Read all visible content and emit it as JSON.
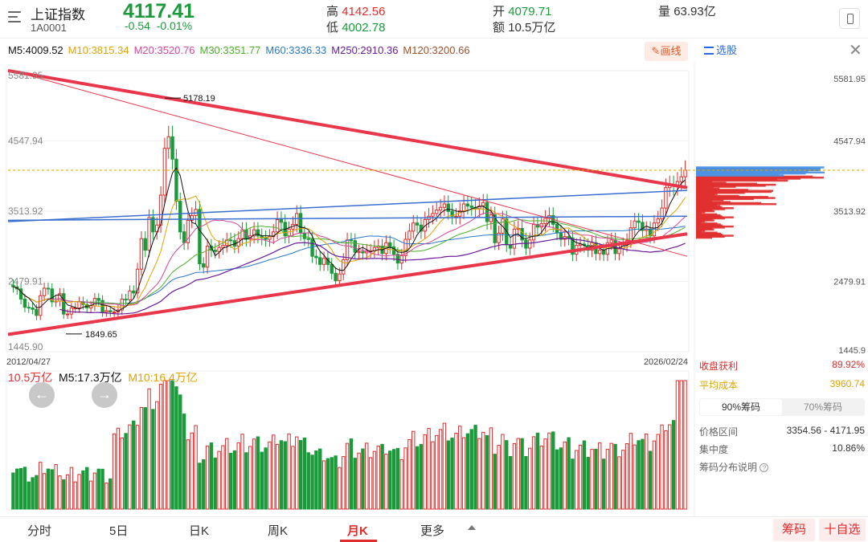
{
  "header": {
    "name": "上证指数",
    "code": "1A0001",
    "price": "4117.41",
    "change": "-0.54",
    "change_pct": "-0.01%",
    "high_label": "高",
    "high": "4142.56",
    "low_label": "低",
    "low": "4002.78",
    "open_label": "开",
    "open": "4079.71",
    "amount_label": "额",
    "amount": "10.5万亿",
    "volume_label": "量",
    "volume": "63.93亿"
  },
  "ma_bar": [
    {
      "label": "M5:4009.52",
      "color": "#111111"
    },
    {
      "label": "M10:3815.34",
      "color": "#e0a300"
    },
    {
      "label": "M20:3520.76",
      "color": "#d6469b"
    },
    {
      "label": "M30:3351.77",
      "color": "#4caf2a"
    },
    {
      "label": "M60:3336.33",
      "color": "#2a78c8"
    },
    {
      "label": "M250:2910.36",
      "color": "#6a1b9a"
    },
    {
      "label": "M120:3200.66",
      "color": "#a0522d"
    }
  ],
  "toolbar": {
    "draw_label": "画线",
    "stock_pick_label": "选股"
  },
  "price_axis": {
    "left_labels": [
      "5581.95",
      "4547.94",
      "3513.92",
      "2479.91",
      "1445.90"
    ],
    "right_labels": [
      "5581.95",
      "4547.94",
      "3513.92",
      "2479.91",
      "1445.9"
    ]
  },
  "dates": {
    "start": "2012/04/27",
    "end": "2026/02/24"
  },
  "annotations": {
    "high": "5178.19",
    "low": "1849.65"
  },
  "volume_bar": {
    "total": "10.5万亿",
    "m5": "M5:17.3万亿",
    "m10": "M10:16.4万亿"
  },
  "chips": {
    "profit_label": "收盘获利",
    "profit_value": "89.92%",
    "avg_cost_label": "平均成本",
    "avg_cost_value": "3960.74",
    "tab_90": "90%筹码",
    "tab_70": "70%筹码",
    "range_label": "价格区间",
    "range_value": "3354.56 - 4171.95",
    "concentration_label": "集中度",
    "concentration_value": "10.86%",
    "explain_label": "筹码分布说明"
  },
  "bottom_tabs": [
    "分时",
    "5日",
    "日K",
    "周K",
    "月K",
    "更多"
  ],
  "active_tab": "月K",
  "buttons": {
    "chips": "筹码",
    "watchlist": "十自选"
  },
  "colors": {
    "up": "#e02c2c",
    "down": "#1a9a3a",
    "trendline": "#e8364a",
    "blue_line": "#3a6fd0"
  },
  "icons": [
    "menu-icon",
    "phone-icon",
    "pencil-icon",
    "list-icon",
    "close-icon",
    "arrow-left-icon",
    "arrow-right-icon",
    "arrow-up-icon",
    "help-icon"
  ],
  "chart_data": {
    "type": "candlestick",
    "period": "monthly",
    "y_range": [
      1445.9,
      5581.95
    ],
    "date_range": [
      "2012/04/27",
      "2026/02/24"
    ],
    "series_close_approx": [
      2400,
      2370,
      2220,
      2100,
      2090,
      2070,
      1980,
      2270,
      2380,
      2370,
      2180,
      2190,
      2300,
      2000,
      2000,
      2090,
      2090,
      2180,
      2140,
      2090,
      2120,
      2230,
      2200,
      2030,
      2050,
      2030,
      2030,
      2060,
      2220,
      2210,
      2340,
      2310,
      2660,
      3110,
      2940,
      3420,
      3210,
      3310,
      3750,
      4440,
      4610,
      4280,
      3660,
      3210,
      3050,
      3380,
      3450,
      3540,
      2740,
      2690,
      3000,
      2940,
      2920,
      2980,
      3010,
      3090,
      3080,
      3000,
      3110,
      3240,
      3100,
      3150,
      3240,
      3150,
      3120,
      3100,
      3140,
      3210,
      3390,
      3350,
      3150,
      3250,
      3320,
      3480,
      3190,
      3110,
      3100,
      2850,
      2830,
      2730,
      2820,
      2730,
      2600,
      2490,
      2590,
      2800,
      3090,
      3080,
      2910,
      2920,
      2900,
      2930,
      2930,
      2980,
      3000,
      2890,
      3050,
      2990,
      2880,
      2750,
      2860,
      3100,
      3220,
      3340,
      3310,
      3220,
      3390,
      3440,
      3480,
      3530,
      3570,
      3620,
      3510,
      3440,
      3440,
      3520,
      3620,
      3590,
      3570,
      3550,
      3590,
      3640,
      3360,
      3460,
      3050,
      3190,
      3400,
      3020,
      2970,
      3250,
      3260,
      3090,
      2970,
      3090,
      3320,
      3280,
      3330,
      3410,
      3450,
      3320,
      3200,
      3100,
      3140,
      3120,
      2880,
      3010,
      3030,
      3010,
      2940,
      3050,
      2890,
      2940,
      2880,
      3050,
      3090,
      2890,
      2960,
      3020,
      3080,
      3270,
      3370,
      3350,
      3230,
      3250,
      3150,
      3340,
      3400,
      3560,
      3860,
      3900,
      3880,
      3950,
      4020,
      4117.41
    ],
    "ma_lines": {
      "M5": 4009.52,
      "M10": 3815.34,
      "M20": 3520.76,
      "M30": 3351.77,
      "M60": 3336.33,
      "M250": 2910.36,
      "M120": 3200.66
    },
    "trendlines": [
      {
        "from": [
          "2012/04/27",
          5581.95
        ],
        "to": [
          "2026/02/24",
          3860
        ]
      },
      {
        "from": [
          "2012/04/27",
          1700
        ],
        "to": [
          "2026/02/24",
          3180
        ]
      },
      {
        "from": [
          "2012/04/27",
          3380
        ],
        "to": [
          "2026/02/24",
          3440
        ]
      },
      {
        "from": [
          "2012/04/27",
          3360
        ],
        "to": [
          "2026/02/24",
          3820
        ]
      },
      {
        "from": [
          "2012/04/27",
          5530
        ],
        "to": [
          "2026/02/24",
          2850
        ]
      }
    ],
    "volume_unit": "万亿",
    "volume_m5": 17.3,
    "volume_m10": 16.4
  }
}
